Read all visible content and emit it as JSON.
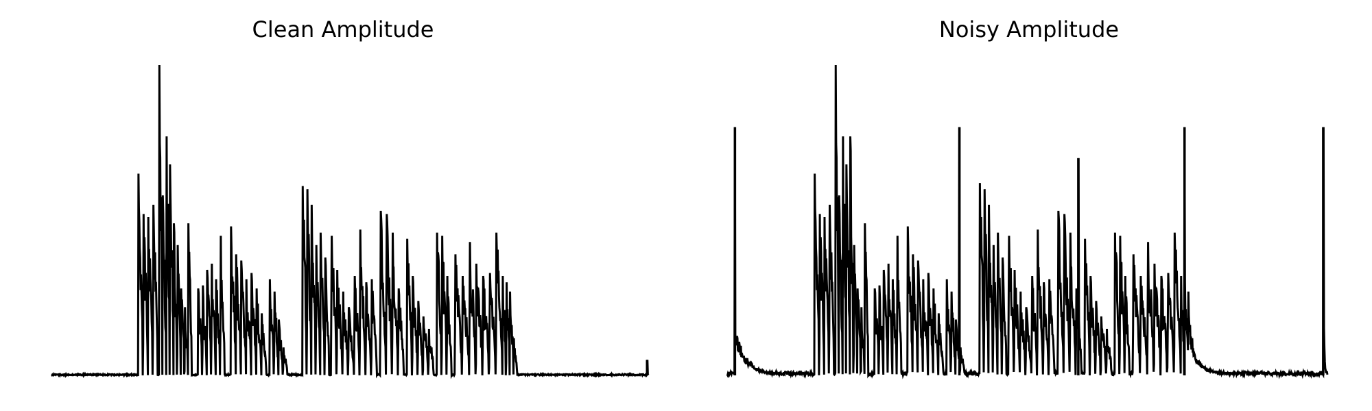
{
  "chart_data": [
    {
      "type": "line",
      "title": "Clean Amplitude",
      "xlabel": "",
      "ylabel": "",
      "axes_visible": false,
      "grid": false,
      "line_color": "#000000",
      "x_range": [
        0,
        1
      ],
      "ylim": [
        0,
        1
      ],
      "bursts": [
        {
          "start": 0.145,
          "end": 0.178,
          "peaks": [
            0.65,
            0.52,
            0.51,
            0.55
          ]
        },
        {
          "start": 0.18,
          "end": 0.235,
          "peaks": [
            1.0,
            0.58,
            0.77,
            0.68,
            0.49,
            0.42,
            0.28,
            0.22,
            0.49
          ]
        },
        {
          "start": 0.245,
          "end": 0.29,
          "peaks": [
            0.28,
            0.29,
            0.34,
            0.36,
            0.31,
            0.45
          ]
        },
        {
          "start": 0.3,
          "end": 0.36,
          "peaks": [
            0.48,
            0.39,
            0.37,
            0.31,
            0.33,
            0.28,
            0.2
          ]
        },
        {
          "start": 0.365,
          "end": 0.395,
          "peaks": [
            0.31,
            0.27,
            0.18,
            0.09
          ]
        },
        {
          "start": 0.42,
          "end": 0.465,
          "peaks": [
            0.61,
            0.6,
            0.55,
            0.42,
            0.46,
            0.38
          ]
        },
        {
          "start": 0.468,
          "end": 0.545,
          "peaks": [
            0.45,
            0.34,
            0.27,
            0.22,
            0.32,
            0.47,
            0.3,
            0.31
          ]
        },
        {
          "start": 0.55,
          "end": 0.59,
          "peaks": [
            0.53,
            0.52,
            0.46,
            0.28
          ]
        },
        {
          "start": 0.595,
          "end": 0.64,
          "peaks": [
            0.44,
            0.32,
            0.24,
            0.19,
            0.15
          ]
        },
        {
          "start": 0.645,
          "end": 0.67,
          "peaks": [
            0.46,
            0.45,
            0.32
          ]
        },
        {
          "start": 0.675,
          "end": 0.7,
          "peaks": [
            0.39,
            0.32
          ]
        },
        {
          "start": 0.7,
          "end": 0.755,
          "peaks": [
            0.43,
            0.36,
            0.32,
            0.33,
            0.46
          ]
        },
        {
          "start": 0.755,
          "end": 0.78,
          "peaks": [
            0.32,
            0.3,
            0.27,
            0.12
          ]
        }
      ],
      "spikes": [
        {
          "x": 0.998,
          "value": 0.05
        }
      ],
      "noise_floor": 0.004
    },
    {
      "type": "line",
      "title": "Noisy Amplitude",
      "xlabel": "",
      "ylabel": "",
      "axes_visible": false,
      "grid": false,
      "line_color": "#000000",
      "x_range": [
        0,
        1
      ],
      "ylim": [
        0,
        1
      ],
      "bursts": [
        {
          "start": 0.145,
          "end": 0.178,
          "peaks": [
            0.65,
            0.52,
            0.51,
            0.55
          ]
        },
        {
          "start": 0.18,
          "end": 0.235,
          "peaks": [
            1.0,
            0.58,
            0.77,
            0.68,
            0.77,
            0.42,
            0.28,
            0.22,
            0.49
          ]
        },
        {
          "start": 0.245,
          "end": 0.29,
          "peaks": [
            0.28,
            0.29,
            0.34,
            0.36,
            0.31,
            0.45
          ]
        },
        {
          "start": 0.3,
          "end": 0.36,
          "peaks": [
            0.48,
            0.39,
            0.37,
            0.31,
            0.33,
            0.28,
            0.2
          ]
        },
        {
          "start": 0.365,
          "end": 0.395,
          "peaks": [
            0.31,
            0.27,
            0.18,
            0.09
          ]
        },
        {
          "start": 0.42,
          "end": 0.465,
          "peaks": [
            0.62,
            0.6,
            0.55,
            0.42,
            0.46,
            0.38
          ]
        },
        {
          "start": 0.468,
          "end": 0.545,
          "peaks": [
            0.45,
            0.34,
            0.27,
            0.22,
            0.32,
            0.47,
            0.3,
            0.31
          ]
        },
        {
          "start": 0.55,
          "end": 0.59,
          "peaks": [
            0.53,
            0.52,
            0.46,
            0.28
          ]
        },
        {
          "start": 0.595,
          "end": 0.64,
          "peaks": [
            0.44,
            0.32,
            0.24,
            0.19,
            0.15
          ]
        },
        {
          "start": 0.645,
          "end": 0.67,
          "peaks": [
            0.46,
            0.45,
            0.32
          ]
        },
        {
          "start": 0.675,
          "end": 0.7,
          "peaks": [
            0.39,
            0.32
          ]
        },
        {
          "start": 0.7,
          "end": 0.755,
          "peaks": [
            0.43,
            0.36,
            0.32,
            0.33,
            0.46
          ]
        },
        {
          "start": 0.755,
          "end": 0.78,
          "peaks": [
            0.32,
            0.3,
            0.27,
            0.12
          ]
        }
      ],
      "spikes": [
        {
          "x": 0.013,
          "value": 0.8
        },
        {
          "x": 0.387,
          "value": 0.8
        },
        {
          "x": 0.585,
          "value": 0.7
        },
        {
          "x": 0.762,
          "value": 0.8
        },
        {
          "x": 0.993,
          "value": 0.8
        }
      ],
      "decay_tails": [
        {
          "start": 0.014,
          "end": 0.11,
          "amplitude": 0.16
        },
        {
          "start": 0.763,
          "end": 0.86,
          "amplitude": 0.16
        },
        {
          "start": 0.994,
          "end": 1.0,
          "amplitude": 0.16
        }
      ],
      "noise_floor": 0.012
    }
  ]
}
